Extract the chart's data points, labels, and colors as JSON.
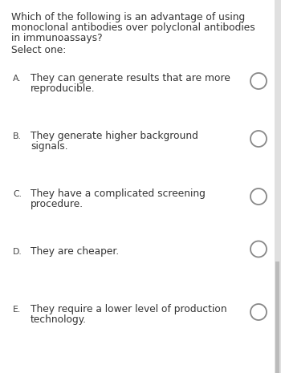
{
  "background_color": "#f0f0f0",
  "content_bg": "#ffffff",
  "question_text_lines": [
    "Which of the following is an advantage of using",
    "monoclonal antibodies over polyclonal antibodies",
    "in immunoassays?"
  ],
  "select_text": "Select one:",
  "options": [
    {
      "letter": "A.",
      "text_lines": [
        "They can generate results that are more",
        "reproducible."
      ]
    },
    {
      "letter": "B.",
      "text_lines": [
        "They generate higher background",
        "signals."
      ]
    },
    {
      "letter": "C.",
      "text_lines": [
        "They have a complicated screening",
        "procedure."
      ]
    },
    {
      "letter": "D.",
      "text_lines": [
        "They are cheaper."
      ]
    },
    {
      "letter": "E.",
      "text_lines": [
        "They require a lower level of production",
        "technology."
      ]
    }
  ],
  "question_fontsize": 8.8,
  "select_fontsize": 8.8,
  "option_fontsize": 8.8,
  "text_color": "#333333",
  "letter_color": "#444444",
  "circle_edgecolor": "#888888",
  "scrollbar_color": "#cccccc",
  "fig_width": 3.5,
  "fig_height": 4.65,
  "dpi": 100
}
